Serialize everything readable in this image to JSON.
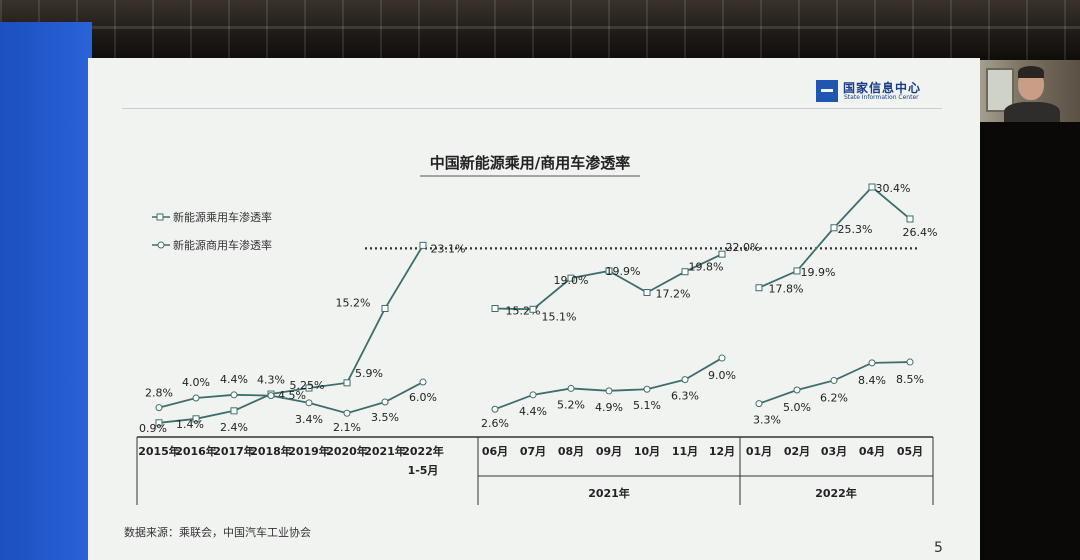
{
  "slide": {
    "logo_cn": "国家信息中心",
    "logo_en": "State Information Center",
    "source": "数据来源：乘联会，中国汽车工业协会",
    "page_number": "5"
  },
  "chart_data": {
    "type": "line",
    "title": "中国新能源乘用/商用车渗透率",
    "legend_position": "top-left",
    "series": [
      {
        "name": "新能源乘用车渗透率",
        "annual_values": [
          0.9,
          1.4,
          2.4,
          4.5,
          5.25,
          5.9,
          15.2,
          23.1
        ],
        "annual_labels": [
          "0.9%",
          "1.4%",
          "2.4%",
          "4.5%",
          "5.25%",
          "5.9%",
          "15.2%",
          "23.1%"
        ],
        "monthly_2021": [
          15.2,
          15.1,
          19.0,
          19.9,
          17.2,
          19.8,
          22.0
        ],
        "monthly_2021_labels": [
          "15.2%",
          "15.1%",
          "19.0%",
          "19.9%",
          "17.2%",
          "19.8%",
          "22.0%"
        ],
        "monthly_2022": [
          17.8,
          19.9,
          25.3,
          30.4,
          26.4
        ],
        "monthly_2022_labels": [
          "17.8%",
          "19.9%",
          "25.3%",
          "30.4%",
          "26.4%"
        ]
      },
      {
        "name": "新能源商用车渗透率",
        "annual_values": [
          2.8,
          4.0,
          4.4,
          4.3,
          3.4,
          2.1,
          3.5,
          6.0
        ],
        "annual_labels": [
          "2.8%",
          "4.0%",
          "4.4%",
          "4.3%",
          "3.4%",
          "2.1%",
          "3.5%",
          "6.0%"
        ],
        "monthly_2021": [
          2.6,
          4.4,
          5.2,
          4.9,
          5.1,
          6.3,
          9.0
        ],
        "monthly_2021_labels": [
          "2.6%",
          "4.4%",
          "5.2%",
          "4.9%",
          "5.1%",
          "6.3%",
          "9.0%"
        ],
        "monthly_2022": [
          3.3,
          5.0,
          6.2,
          8.4,
          8.5
        ],
        "monthly_2022_labels": [
          "3.3%",
          "5.0%",
          "6.2%",
          "8.4%",
          "8.5%"
        ]
      }
    ],
    "annual_categories": [
      "2015年",
      "2016年",
      "2017年",
      "2018年",
      "2019年",
      "2020年",
      "2021年",
      "2022年"
    ],
    "annual_last_sublabel": "1-5月",
    "monthly_2021_categories": [
      "06月",
      "07月",
      "08月",
      "09月",
      "10月",
      "11月",
      "12月"
    ],
    "monthly_2022_categories": [
      "01月",
      "02月",
      "03月",
      "04月",
      "05月"
    ],
    "group_labels": [
      "2021年",
      "2022年"
    ],
    "reference_line_value": 23.1,
    "grid": false
  }
}
